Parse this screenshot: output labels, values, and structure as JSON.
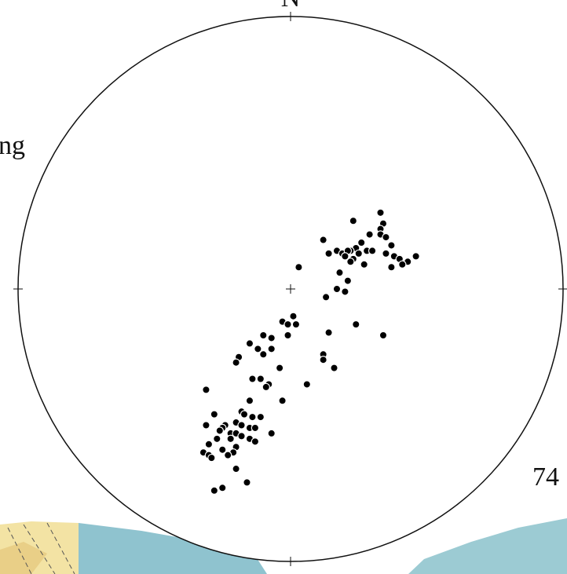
{
  "chart_data": {
    "type": "scatter",
    "north_label": "N",
    "annotations": [
      "ng",
      "74"
    ],
    "xlim": [
      -1,
      1
    ],
    "ylim": [
      -1,
      1
    ],
    "color": "#000000",
    "x": [
      0.33,
      0.23,
      0.34,
      0.33,
      0.29,
      0.33,
      0.35,
      0.12,
      0.26,
      0.37,
      0.24,
      0.17,
      0.22,
      0.28,
      0.3,
      0.14,
      0.19,
      0.21,
      0.25,
      0.35,
      0.38,
      0.46,
      0.2,
      0.23,
      0.4,
      0.43,
      0.22,
      0.27,
      0.37,
      0.41,
      0.03,
      0.18,
      0.21,
      0.17,
      0.2,
      0.13,
      0.01,
      -0.03,
      0.02,
      -0.01,
      -0.01,
      0.24,
      0.34,
      0.14,
      -0.07,
      -0.1,
      -0.15,
      -0.12,
      -0.07,
      -0.1,
      -0.19,
      -0.2,
      0.12,
      0.12,
      0.16,
      -0.04,
      -0.14,
      -0.11,
      -0.08,
      -0.09,
      0.06,
      -0.31,
      -0.03,
      -0.15,
      -0.18,
      -0.28,
      -0.17,
      -0.14,
      -0.11,
      -0.2,
      -0.24,
      -0.31,
      -0.18,
      -0.25,
      -0.15,
      -0.13,
      -0.26,
      -0.22,
      -0.2,
      -0.07,
      -0.18,
      -0.27,
      -0.22,
      -0.15,
      -0.13,
      -0.3,
      -0.25,
      -0.2,
      -0.21,
      -0.32,
      -0.3,
      -0.23,
      -0.29,
      -0.2,
      -0.16,
      -0.25,
      -0.28
    ],
    "y": [
      0.28,
      0.25,
      0.24,
      0.22,
      0.2,
      0.2,
      0.19,
      0.18,
      0.17,
      0.16,
      0.15,
      0.14,
      0.14,
      0.14,
      0.14,
      0.13,
      0.13,
      0.14,
      0.13,
      0.13,
      0.12,
      0.12,
      0.12,
      0.11,
      0.11,
      0.1,
      0.1,
      0.09,
      0.08,
      0.09,
      0.08,
      0.06,
      0.03,
      0,
      -0.01,
      -0.03,
      -0.1,
      -0.12,
      -0.13,
      -0.13,
      -0.17,
      -0.13,
      -0.17,
      -0.16,
      -0.18,
      -0.17,
      -0.2,
      -0.22,
      -0.22,
      -0.24,
      -0.25,
      -0.27,
      -0.24,
      -0.26,
      -0.29,
      -0.29,
      -0.33,
      -0.33,
      -0.35,
      -0.36,
      -0.35,
      -0.37,
      -0.41,
      -0.41,
      -0.45,
      -0.46,
      -0.46,
      -0.47,
      -0.47,
      -0.49,
      -0.5,
      -0.5,
      -0.5,
      -0.51,
      -0.51,
      -0.51,
      -0.52,
      -0.53,
      -0.53,
      -0.53,
      -0.54,
      -0.55,
      -0.55,
      -0.55,
      -0.56,
      -0.57,
      -0.59,
      -0.58,
      -0.6,
      -0.6,
      -0.61,
      -0.61,
      -0.62,
      -0.66,
      -0.71,
      -0.73,
      -0.74
    ]
  }
}
